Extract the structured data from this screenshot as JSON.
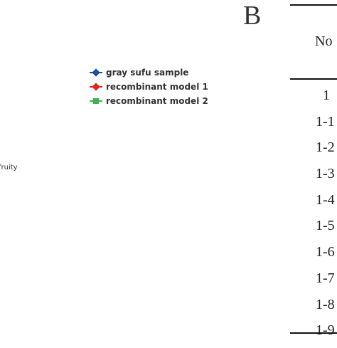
{
  "chart_data": {
    "type": "line",
    "series": [
      {
        "name": "gray sufu sample",
        "color": "#1f4e9c",
        "marker": "diamond"
      },
      {
        "name": "recombinant model 1",
        "color": "#e0231c",
        "marker": "diamond"
      },
      {
        "name": "recombinant model 2",
        "color": "#3cb44b",
        "marker": "square"
      }
    ],
    "axis_label_fragment": "fruity",
    "legend_position": "top-left"
  },
  "panel_b": {
    "letter": "B",
    "header": "No",
    "rows": [
      "1",
      "1-1",
      "1-2",
      "1-3",
      "1-4",
      "1-5",
      "1-6",
      "1-7",
      "1-8",
      "1-9"
    ]
  }
}
